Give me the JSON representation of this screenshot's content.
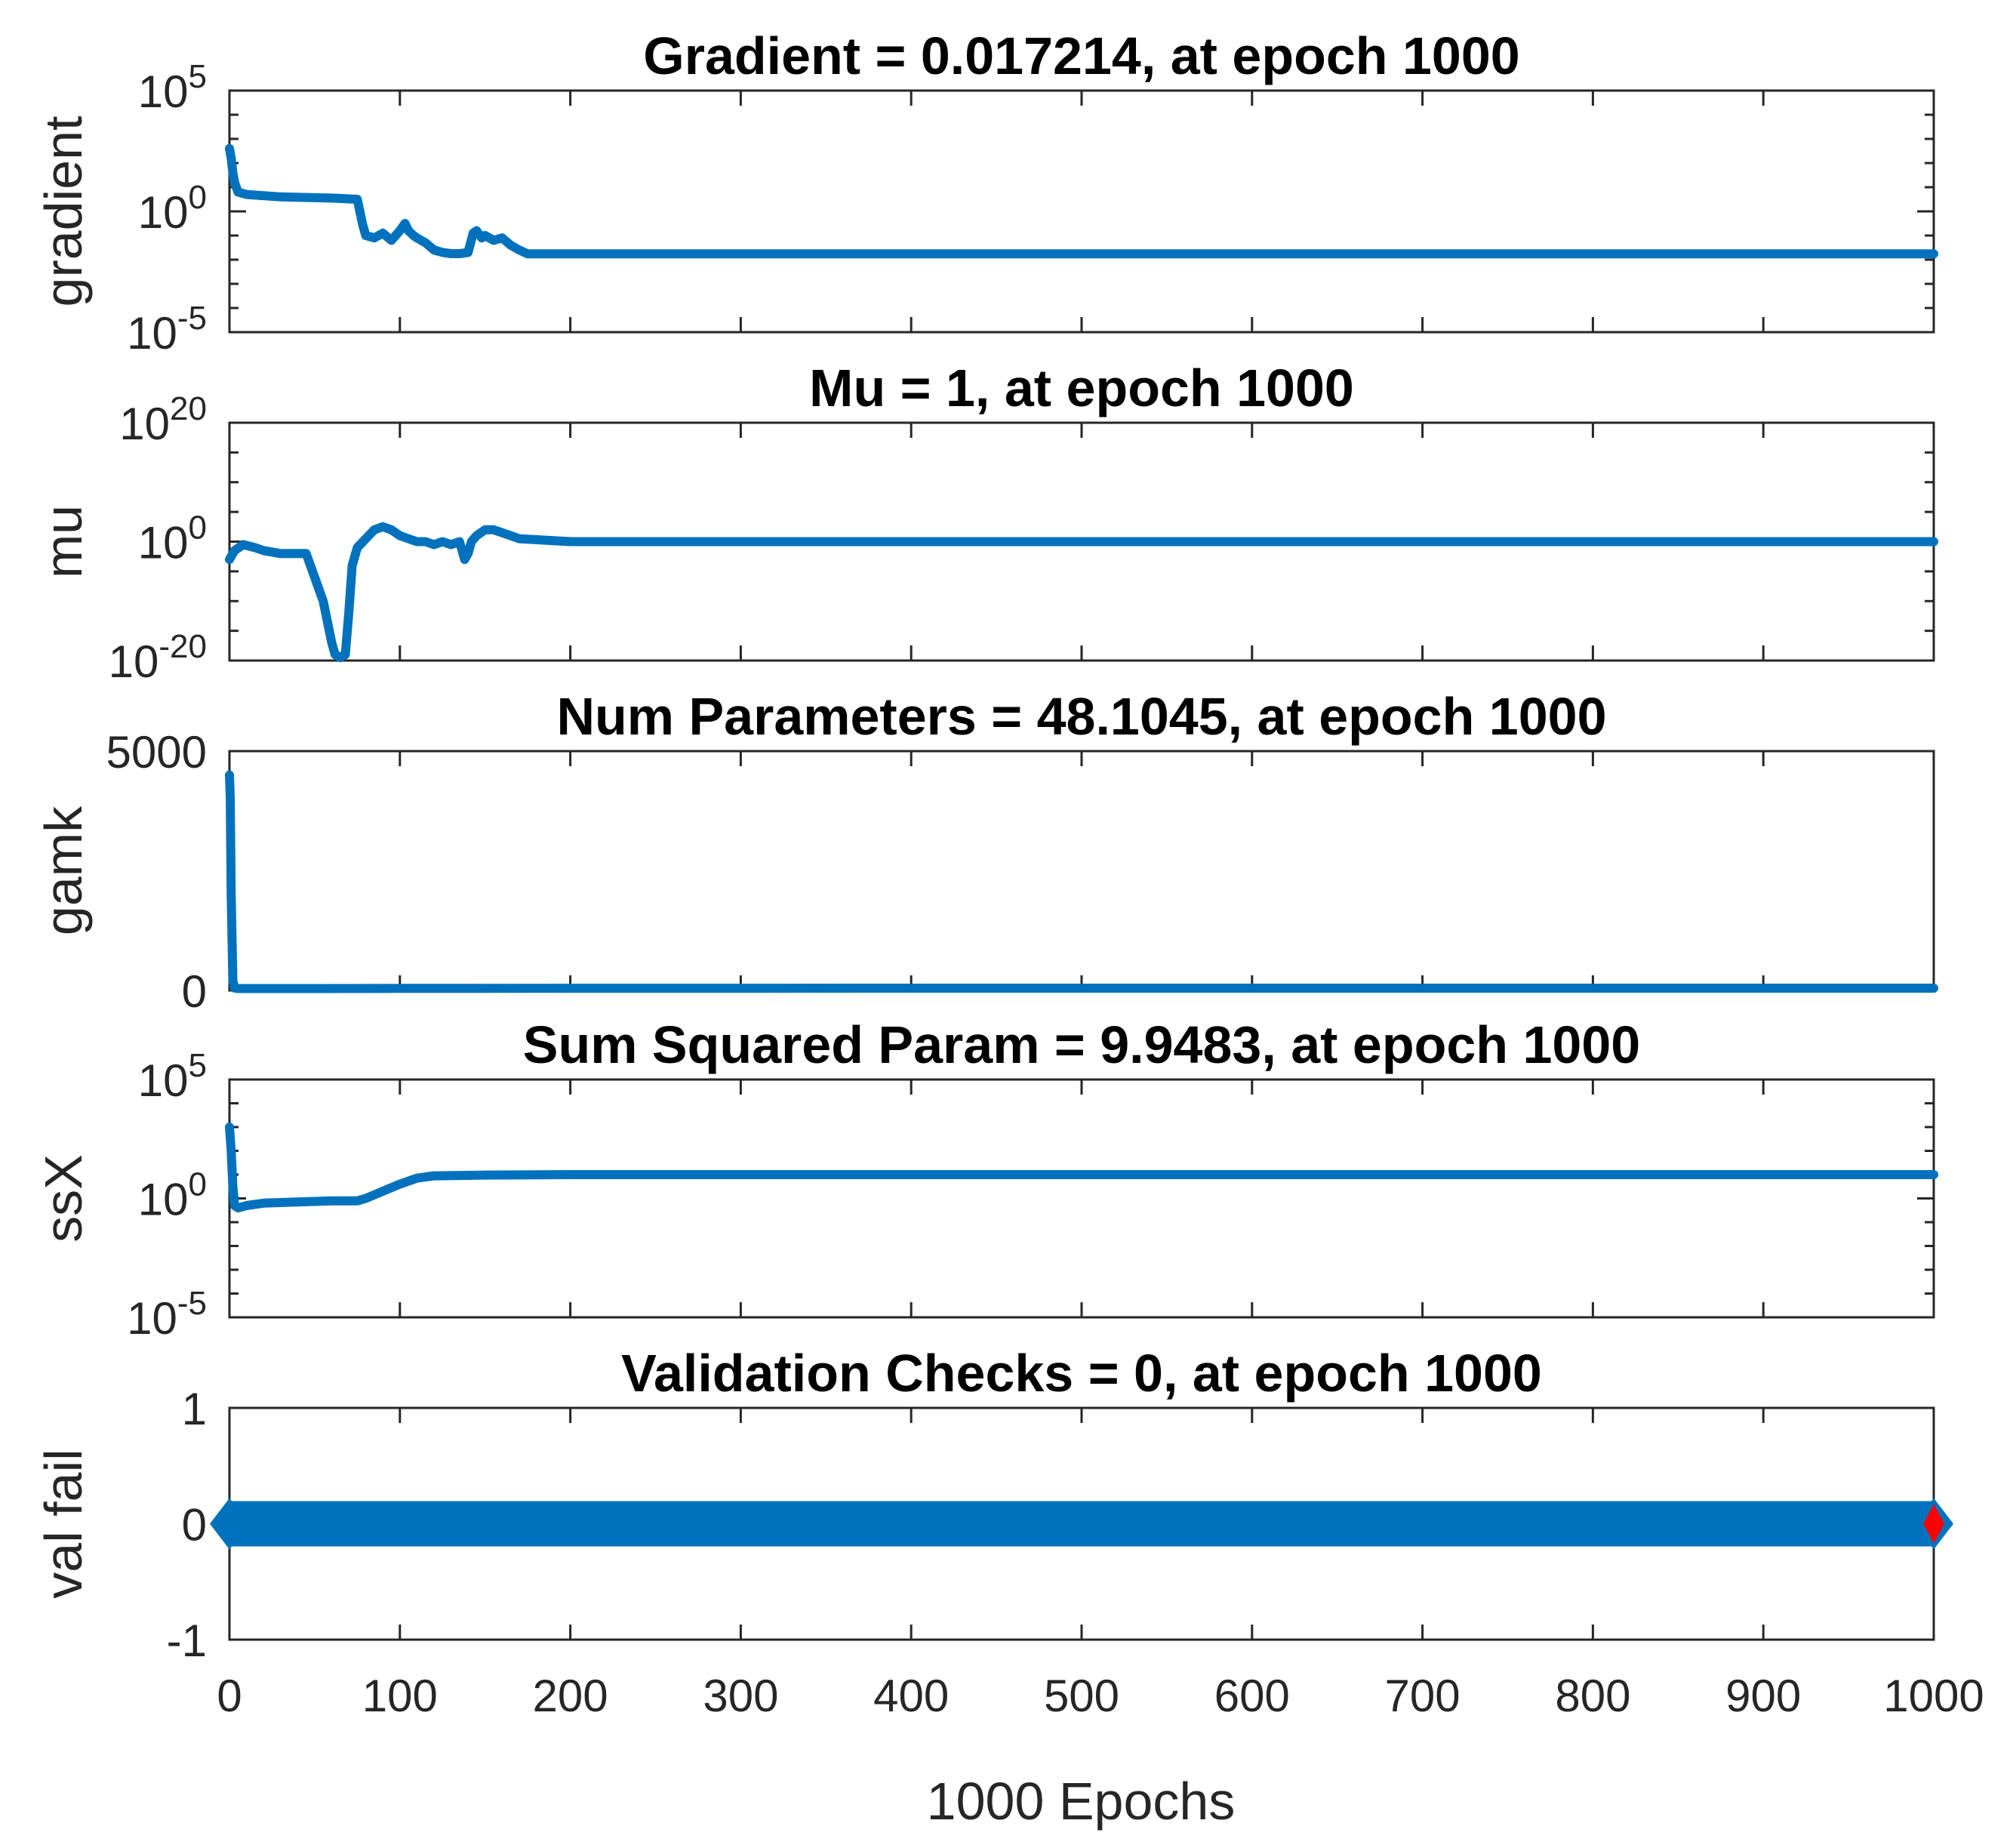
{
  "chart_data": [
    {
      "id": "gradient",
      "type": "line",
      "title": "Gradient = 0.017214, at epoch 1000",
      "ylabel": "gradient",
      "yscale": "log",
      "ylim": [
        -5,
        5
      ],
      "yticks": [
        {
          "value": 5,
          "label": "10",
          "exp": "5"
        },
        {
          "value": 0,
          "label": "10",
          "exp": "0"
        },
        {
          "value": -5,
          "label": "10",
          "exp": "-5"
        }
      ],
      "xlim": [
        0,
        1000
      ],
      "series": [
        {
          "name": "gradient",
          "color": "#0072BD",
          "x": [
            0,
            1,
            2,
            3,
            5,
            10,
            30,
            60,
            75,
            78,
            80,
            85,
            90,
            95,
            100,
            103,
            105,
            108,
            110,
            115,
            120,
            125,
            130,
            135,
            140,
            143,
            145,
            148,
            150,
            155,
            160,
            165,
            170,
            175,
            200,
            300,
            400,
            500,
            600,
            700,
            800,
            900,
            1000
          ],
          "y": [
            2.6,
            2.2,
            1.6,
            1.2,
            0.8,
            0.7,
            0.6,
            0.55,
            0.5,
            -0.5,
            -1.0,
            -1.1,
            -0.9,
            -1.2,
            -0.8,
            -0.5,
            -0.8,
            -1.0,
            -1.1,
            -1.3,
            -1.6,
            -1.7,
            -1.75,
            -1.75,
            -1.7,
            -0.9,
            -0.8,
            -1.1,
            -1.0,
            -1.2,
            -1.1,
            -1.4,
            -1.6,
            -1.76,
            -1.76,
            -1.76,
            -1.76,
            -1.76,
            -1.76,
            -1.76,
            -1.76,
            -1.76,
            -1.76
          ]
        }
      ]
    },
    {
      "id": "mu",
      "type": "line",
      "title": "Mu = 1, at epoch 1000",
      "ylabel": "mu",
      "yscale": "log",
      "ylim": [
        -20,
        20
      ],
      "yticks": [
        {
          "value": 20,
          "label": "10",
          "exp": "20"
        },
        {
          "value": 0,
          "label": "10",
          "exp": "0"
        },
        {
          "value": -20,
          "label": "10",
          "exp": "-20"
        }
      ],
      "xlim": [
        0,
        1000
      ],
      "series": [
        {
          "name": "mu",
          "color": "#0072BD",
          "x": [
            0,
            3,
            8,
            15,
            20,
            30,
            45,
            55,
            60,
            62,
            65,
            68,
            70,
            72,
            75,
            80,
            85,
            90,
            95,
            100,
            105,
            110,
            115,
            120,
            125,
            130,
            135,
            138,
            140,
            142,
            145,
            150,
            155,
            160,
            165,
            170,
            200,
            300,
            400,
            500,
            600,
            700,
            800,
            900,
            1000
          ],
          "y": [
            -3,
            -1.5,
            -0.5,
            -1,
            -1.5,
            -2,
            -2,
            -10,
            -17,
            -19,
            -19.5,
            -19,
            -12,
            -4,
            -1,
            0.5,
            2,
            2.5,
            2,
            1,
            0.5,
            0,
            0,
            -0.5,
            0,
            -0.5,
            0,
            -3,
            -2,
            0,
            1,
            2,
            2,
            1.5,
            1,
            0.5,
            0,
            0,
            0,
            0,
            0,
            0,
            0,
            0,
            0
          ]
        }
      ]
    },
    {
      "id": "gamk",
      "type": "line",
      "title": "Num Parameters = 48.1045, at epoch 1000",
      "ylabel": "gamk",
      "yscale": "linear",
      "ylim": [
        0,
        5000
      ],
      "yticks": [
        {
          "value": 5000,
          "label": "5000"
        },
        {
          "value": 0,
          "label": "0"
        }
      ],
      "xlim": [
        0,
        1000
      ],
      "series": [
        {
          "name": "gamk",
          "color": "#0072BD",
          "x": [
            0,
            0.5,
            1,
            2,
            3,
            5,
            20,
            50,
            100,
            200,
            300,
            400,
            500,
            600,
            700,
            800,
            900,
            1000
          ],
          "y": [
            4500,
            4000,
            2000,
            200,
            50,
            40,
            40,
            40,
            42,
            45,
            46,
            47,
            47,
            48,
            48,
            48,
            48,
            48.1045
          ]
        }
      ]
    },
    {
      "id": "ssx",
      "type": "line",
      "title": "Sum Squared Param = 9.9483, at epoch 1000",
      "ylabel": "ssX",
      "yscale": "log",
      "ylim": [
        -5,
        5
      ],
      "yticks": [
        {
          "value": 5,
          "label": "10",
          "exp": "5"
        },
        {
          "value": 0,
          "label": "10",
          "exp": "0"
        },
        {
          "value": -5,
          "label": "10",
          "exp": "-5"
        }
      ],
      "xlim": [
        0,
        1000
      ],
      "series": [
        {
          "name": "ssX",
          "color": "#0072BD",
          "x": [
            0,
            1,
            2,
            3,
            5,
            10,
            20,
            40,
            60,
            75,
            80,
            90,
            100,
            110,
            120,
            150,
            200,
            300,
            400,
            500,
            600,
            700,
            800,
            900,
            1000
          ],
          "y": [
            3,
            2,
            0.5,
            -0.3,
            -0.4,
            -0.3,
            -0.2,
            -0.15,
            -0.1,
            -0.1,
            0,
            0.3,
            0.6,
            0.85,
            0.95,
            0.98,
            1.0,
            1.0,
            1.0,
            1.0,
            1.0,
            1.0,
            1.0,
            1.0,
            1.0
          ]
        }
      ]
    },
    {
      "id": "valfail",
      "type": "line",
      "title": "Validation Checks = 0, at epoch 1000",
      "ylabel": "val fail",
      "yscale": "linear",
      "ylim": [
        -1,
        1
      ],
      "yticks": [
        {
          "value": 1,
          "label": "1"
        },
        {
          "value": 0,
          "label": "0"
        },
        {
          "value": -1,
          "label": "-1"
        }
      ],
      "xlim": [
        0,
        1000
      ],
      "marker": "diamond",
      "series": [
        {
          "name": "val fail",
          "color": "#0072BD",
          "x": [
            0,
            1000
          ],
          "y": [
            0,
            0
          ]
        }
      ],
      "highlight": {
        "x": 1000,
        "y": 0,
        "color": "#FF0000"
      }
    }
  ],
  "xaxis": {
    "label": "1000 Epochs",
    "ticks": [
      "0",
      "100",
      "200",
      "300",
      "400",
      "500",
      "600",
      "700",
      "800",
      "900",
      "1000"
    ]
  }
}
